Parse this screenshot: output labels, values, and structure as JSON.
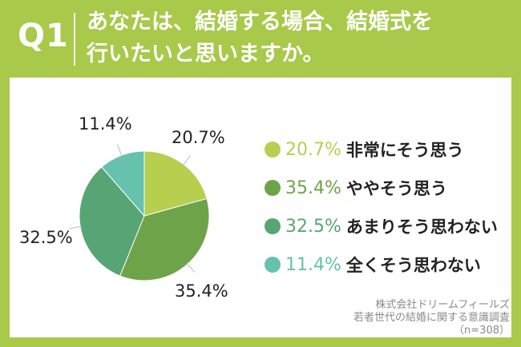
{
  "header": {
    "number": "Q1",
    "question_line1": "あなたは、結婚する場合、結婚式を",
    "question_line2": "行いたいと思いますか。"
  },
  "colors": {
    "background": "#a8c94a",
    "slice1": "#b6cf4f",
    "slice2": "#6fa34a",
    "slice3": "#57a574",
    "slice4": "#66c1ad"
  },
  "chart_data": {
    "type": "pie",
    "categories": [
      "非常にそう思う",
      "ややそう思う",
      "あまりそう思わない",
      "全くそう思わない"
    ],
    "values": [
      20.7,
      35.4,
      32.5,
      11.4
    ],
    "labels": [
      "20.7%",
      "35.4%",
      "32.5%",
      "11.4%"
    ],
    "legend_placement": "right"
  },
  "source": {
    "line1": "株式会社ドリームフィールズ",
    "line2": "若者世代の結婚に関する意識調査",
    "line3": "（n=308）"
  }
}
